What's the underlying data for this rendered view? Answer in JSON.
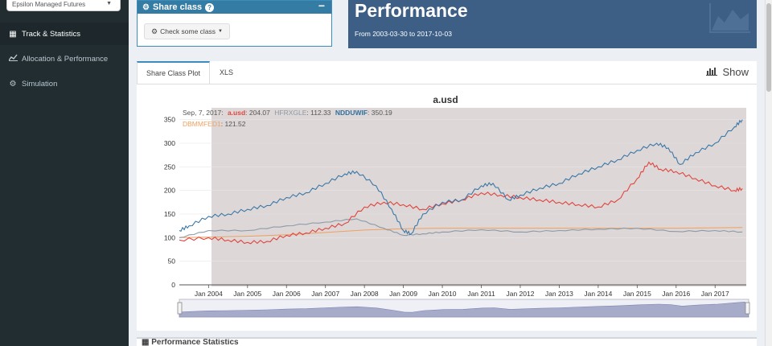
{
  "sidebar": {
    "fund_select": "Epsilon Managed Futures",
    "items": [
      {
        "label": "Track & Statistics",
        "icon": "table-icon"
      },
      {
        "label": "Allocation & Performance",
        "icon": "line-chart-icon"
      },
      {
        "label": "Simulation",
        "icon": "gears-icon"
      }
    ]
  },
  "share_class": {
    "title": "Share class",
    "button_label": "Check some class"
  },
  "performance": {
    "title": "Performance",
    "subtitle": "From 2003-03-30 to 2017-10-03"
  },
  "tabs": [
    {
      "label": "Share Class Plot"
    },
    {
      "label": "XLS"
    }
  ],
  "show_label": "Show",
  "bottom_title": "Performance Statistics",
  "chart_data": {
    "type": "line",
    "title": "a.usd",
    "ylim": [
      0,
      375
    ],
    "y_ticks": [
      0,
      50,
      100,
      150,
      200,
      250,
      300,
      350
    ],
    "x_ticks": [
      "Jan 2004",
      "Jan 2005",
      "Jan 2006",
      "Jan 2007",
      "Jan 2008",
      "Jan 2009",
      "Jan 2010",
      "Jan 2011",
      "Jan 2012",
      "Jan 2013",
      "Jan 2014",
      "Jan 2015",
      "Jan 2016",
      "Jan 2017"
    ],
    "xlim": [
      2003.25,
      2017.8
    ],
    "tooltip": {
      "date": "Sep, 7, 2017:",
      "entries": [
        {
          "name": "a.usd",
          "value": "204.07",
          "color": "#e0453e"
        },
        {
          "name": "HFRXGLE",
          "value": "112.33",
          "color": "#8c9aa6"
        },
        {
          "name": "NDDUWIF",
          "value": "350.19",
          "color": "#2e6f9e"
        },
        {
          "name": "DBMMFED1",
          "value": "121.52",
          "color": "#f0a060"
        }
      ]
    },
    "series": [
      {
        "name": "NDDUWIF",
        "color": "#3a78a8",
        "x": [
          2003.25,
          2003.5,
          2004.0,
          2004.5,
          2005.0,
          2005.5,
          2006.0,
          2006.5,
          2007.0,
          2007.5,
          2007.8,
          2008.3,
          2008.7,
          2009.0,
          2009.2,
          2009.5,
          2010.0,
          2010.5,
          2011.0,
          2011.3,
          2011.7,
          2012.0,
          2012.5,
          2013.0,
          2013.5,
          2014.0,
          2014.5,
          2015.0,
          2015.5,
          2015.8,
          2016.1,
          2016.5,
          2017.0,
          2017.5,
          2017.7
        ],
        "y": [
          115,
          125,
          145,
          150,
          160,
          168,
          185,
          195,
          215,
          235,
          240,
          210,
          160,
          115,
          108,
          150,
          175,
          180,
          210,
          215,
          180,
          190,
          205,
          215,
          235,
          250,
          265,
          285,
          300,
          290,
          255,
          280,
          300,
          335,
          350
        ]
      },
      {
        "name": "a.usd",
        "color": "#e0453e",
        "x": [
          2003.25,
          2004.0,
          2004.5,
          2005.0,
          2005.5,
          2006.0,
          2006.5,
          2007.0,
          2007.5,
          2008.0,
          2008.5,
          2009.0,
          2009.5,
          2010.0,
          2010.5,
          2011.0,
          2011.5,
          2012.0,
          2012.5,
          2013.0,
          2013.5,
          2014.0,
          2014.5,
          2015.0,
          2015.3,
          2015.6,
          2016.0,
          2016.5,
          2017.0,
          2017.5,
          2017.7
        ],
        "y": [
          95,
          100,
          95,
          90,
          92,
          105,
          110,
          120,
          130,
          165,
          175,
          170,
          160,
          172,
          180,
          195,
          190,
          185,
          180,
          175,
          170,
          165,
          180,
          225,
          260,
          245,
          240,
          225,
          210,
          200,
          204
        ]
      },
      {
        "name": "HFRXGLE",
        "color": "#8c9aa6",
        "x": [
          2003.25,
          2004.0,
          2005.0,
          2006.0,
          2007.0,
          2007.8,
          2008.5,
          2009.0,
          2009.5,
          2010.0,
          2011.0,
          2012.0,
          2013.0,
          2014.0,
          2015.0,
          2016.0,
          2017.0,
          2017.7
        ],
        "y": [
          100,
          115,
          115,
          125,
          133,
          140,
          120,
          105,
          108,
          112,
          117,
          112,
          115,
          118,
          120,
          113,
          115,
          112
        ]
      },
      {
        "name": "DBMMFED1",
        "color": "#f0a060",
        "x": [
          2003.25,
          2004.0,
          2005.0,
          2006.0,
          2007.0,
          2008.0,
          2009.0,
          2010.0,
          2012.0,
          2014.0,
          2016.0,
          2017.7
        ],
        "y": [
          100,
          101,
          103,
          106,
          111,
          116,
          119,
          120,
          120,
          120,
          120,
          121.5
        ]
      }
    ]
  }
}
